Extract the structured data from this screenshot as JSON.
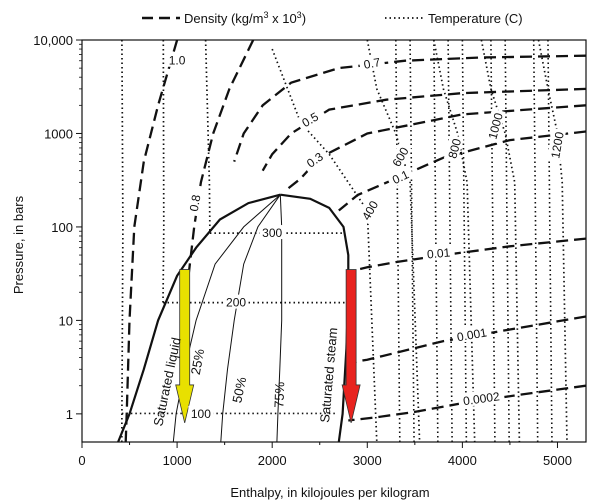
{
  "chart_data": {
    "type": "line",
    "title": "",
    "xlabel": "Enthalpy, in kilojoules per kilogram",
    "ylabel": "Pressure, in bars",
    "xlim": [
      0,
      5300
    ],
    "ylim": [
      0.5,
      10000
    ],
    "y_scale": "log",
    "x_ticks": [
      "0",
      "1000",
      "2000",
      "3000",
      "4000",
      "5000"
    ],
    "y_ticks": [
      "1",
      "10",
      "100",
      "1000",
      "10,000"
    ],
    "legend": {
      "placement": "top",
      "density_label": "Density (kg/m",
      "density_sup": "3",
      "density_tail": " x 10",
      "density_sup2": "3",
      "density_close": ")",
      "temperature_label": "Temperature (C)"
    },
    "saturation_dome": {
      "liquid": [
        [
          380,
          0.5
        ],
        [
          500,
          1
        ],
        [
          650,
          3
        ],
        [
          800,
          10
        ],
        [
          1000,
          30
        ],
        [
          1200,
          60
        ],
        [
          1450,
          120
        ],
        [
          1750,
          180
        ],
        [
          2085,
          221
        ]
      ],
      "vapor": [
        [
          2085,
          221
        ],
        [
          2400,
          200
        ],
        [
          2600,
          160
        ],
        [
          2750,
          100
        ],
        [
          2800,
          50
        ],
        [
          2800,
          20
        ],
        [
          2780,
          5
        ],
        [
          2740,
          1
        ],
        [
          2700,
          0.5
        ]
      ]
    },
    "saturation_labels": [
      "Saturated liquid",
      "Saturated steam"
    ],
    "quality_lines": [
      {
        "label": "25%",
        "points": [
          [
            2085,
            221
          ],
          [
            1700,
            100
          ],
          [
            1400,
            40
          ],
          [
            1200,
            10
          ],
          [
            1080,
            3
          ],
          [
            990,
            1
          ],
          [
            960,
            0.5
          ]
        ]
      },
      {
        "label": "50%",
        "points": [
          [
            2085,
            221
          ],
          [
            1850,
            100
          ],
          [
            1700,
            40
          ],
          [
            1600,
            10
          ],
          [
            1530,
            3
          ],
          [
            1480,
            1
          ],
          [
            1460,
            0.5
          ]
        ]
      },
      {
        "label": "75%",
        "points": [
          [
            2085,
            221
          ],
          [
            2100,
            100
          ],
          [
            2100,
            40
          ],
          [
            2100,
            10
          ],
          [
            2080,
            3
          ],
          [
            2060,
            1
          ],
          [
            2050,
            0.5
          ]
        ]
      }
    ],
    "density_lines": [
      {
        "label": "1.0",
        "points": [
          [
            1000,
            10000
          ],
          [
            800,
            2000
          ],
          [
            650,
            500
          ],
          [
            550,
            100
          ],
          [
            500,
            10
          ],
          [
            470,
            1
          ],
          [
            460,
            0.5
          ]
        ]
      },
      {
        "label": "0.8",
        "points": [
          [
            1800,
            10000
          ],
          [
            1550,
            3000
          ],
          [
            1380,
            1000
          ],
          [
            1250,
            300
          ],
          [
            1180,
            100
          ],
          [
            1120,
            30
          ],
          [
            1100,
            10
          ]
        ]
      },
      {
        "label": "0.7",
        "points": [
          [
            5300,
            6800
          ],
          [
            4200,
            6500
          ],
          [
            3400,
            6000
          ],
          [
            2700,
            5000
          ],
          [
            2200,
            3500
          ],
          [
            1900,
            2000
          ],
          [
            1700,
            1000
          ],
          [
            1600,
            500
          ]
        ]
      },
      {
        "label": "0.5",
        "points": [
          [
            5300,
            3000
          ],
          [
            4000,
            2700
          ],
          [
            3200,
            2300
          ],
          [
            2600,
            1800
          ],
          [
            2200,
            1000
          ],
          [
            2000,
            600
          ],
          [
            1900,
            400
          ]
        ]
      },
      {
        "label": "0.3",
        "points": [
          [
            5300,
            2000
          ],
          [
            4000,
            1600
          ],
          [
            3000,
            1000
          ],
          [
            2500,
            550
          ],
          [
            2300,
            330
          ],
          [
            2150,
            250
          ]
        ]
      },
      {
        "label": "0.1",
        "points": [
          [
            5300,
            1050
          ],
          [
            4500,
            850
          ],
          [
            3800,
            550
          ],
          [
            3300,
            330
          ],
          [
            2900,
            220
          ],
          [
            2700,
            150
          ]
        ]
      },
      {
        "label": "0.01",
        "points": [
          [
            5300,
            75
          ],
          [
            4500,
            62
          ],
          [
            3800,
            50
          ],
          [
            3300,
            42
          ],
          [
            3000,
            37
          ],
          [
            2800,
            33
          ]
        ]
      },
      {
        "label": "0.001",
        "points": [
          [
            5300,
            11
          ],
          [
            4500,
            8
          ],
          [
            3800,
            6
          ],
          [
            3300,
            4.5
          ],
          [
            3000,
            3.8
          ],
          [
            2800,
            3.5
          ]
        ]
      },
      {
        "label": "0.0002",
        "points": [
          [
            5300,
            2
          ],
          [
            4600,
            1.6
          ],
          [
            4000,
            1.3
          ],
          [
            3500,
            1.05
          ],
          [
            3100,
            0.92
          ],
          [
            2800,
            0.85
          ]
        ]
      }
    ],
    "temperature_lines": [
      {
        "label": "100",
        "points": [
          [
            420,
            10000
          ],
          [
            430,
            100
          ],
          [
            420,
            1
          ],
          [
            419,
            0.5
          ]
        ]
      },
      {
        "label": "200",
        "points": [
          [
            855,
            10000
          ],
          [
            860,
            100
          ],
          [
            852,
            15.5
          ]
        ]
      },
      {
        "label": "300",
        "points": [
          [
            1300,
            10000
          ],
          [
            1340,
            300
          ],
          [
            1345,
            86
          ]
        ]
      },
      {
        "label": "400",
        "points": [
          [
            2000,
            8000
          ],
          [
            2300,
            1300
          ],
          [
            2600,
            600
          ],
          [
            3000,
            150
          ],
          [
            3100,
            0.5
          ]
        ]
      },
      {
        "label": "600",
        "points": [
          [
            3000,
            10000
          ],
          [
            3100,
            3000
          ],
          [
            3300,
            1000
          ],
          [
            3450,
            300
          ],
          [
            3550,
            0.5
          ]
        ]
      },
      {
        "label": "800",
        "points": [
          [
            3700,
            10000
          ],
          [
            3800,
            3000
          ],
          [
            3950,
            1000
          ],
          [
            4050,
            300
          ],
          [
            4130,
            0.5
          ]
        ]
      },
      {
        "label": "1000",
        "points": [
          [
            4200,
            10000
          ],
          [
            4300,
            3000
          ],
          [
            4450,
            1000
          ],
          [
            4550,
            300
          ],
          [
            4600,
            0.5
          ]
        ]
      },
      {
        "label": "1200",
        "points": [
          [
            4800,
            10000
          ],
          [
            4900,
            3000
          ],
          [
            5000,
            1000
          ],
          [
            5050,
            300
          ],
          [
            5100,
            0.5
          ]
        ]
      }
    ],
    "extra_dotted_x": [
      3300,
      3450,
      3700,
      3850,
      4000,
      4300,
      4450,
      4750,
      4900
    ],
    "isotherm_plateaus": [
      {
        "temp": 100,
        "p": 1.01,
        "h1": 419,
        "h2": 2676
      },
      {
        "temp": 200,
        "p": 15.5,
        "h1": 852,
        "h2": 2793
      },
      {
        "temp": 300,
        "p": 85.8,
        "h1": 1345,
        "h2": 2749
      }
    ],
    "arrows": [
      {
        "name": "yellow-arrow",
        "color": "#e8e000",
        "h": 1080,
        "p_top": 35,
        "p_bottom": 0.8
      },
      {
        "name": "red-arrow",
        "color": "#e8231f",
        "h": 2830,
        "p_top": 35,
        "p_bottom": 0.8
      }
    ],
    "colors": {
      "lines": "#111111",
      "axis": "#111111"
    }
  }
}
